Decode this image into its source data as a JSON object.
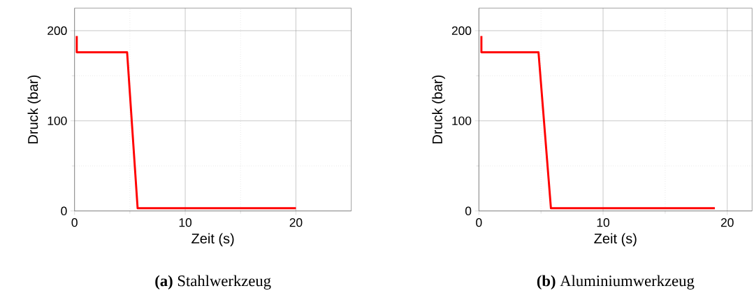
{
  "chart_data": [
    {
      "type": "line",
      "xlabel": "Zeit (s)",
      "ylabel": "Druck (bar)",
      "annotations": [
        "**(a)** Stahlwerkzeug"
      ],
      "xlim": [
        0,
        25
      ],
      "ylim": [
        0,
        225
      ],
      "xticks": [
        0,
        10,
        20
      ],
      "yticks": [
        0,
        100,
        200
      ],
      "grid": true,
      "line_style": "solid",
      "marker": "none",
      "series": [
        {
          "color": "#ff0000",
          "x": [
            0.2,
            0.2,
            4.75,
            5.7,
            20
          ],
          "values": [
            194,
            176,
            176,
            3,
            3
          ]
        }
      ]
    },
    {
      "type": "line",
      "xlabel": "Zeit (s)",
      "ylabel": "Druck (bar)",
      "annotations": [
        "**(b)** Aluminiumwerkzeug"
      ],
      "xlim": [
        0,
        22
      ],
      "ylim": [
        0,
        225
      ],
      "xticks": [
        0,
        10,
        20
      ],
      "yticks": [
        0,
        100,
        200
      ],
      "grid": true,
      "line_style": "solid",
      "marker": "none",
      "series": [
        {
          "color": "#ff0000",
          "x": [
            0.2,
            0.2,
            4.8,
            5.8,
            19.0
          ],
          "values": [
            194,
            176,
            176,
            3,
            3
          ]
        }
      ]
    }
  ]
}
